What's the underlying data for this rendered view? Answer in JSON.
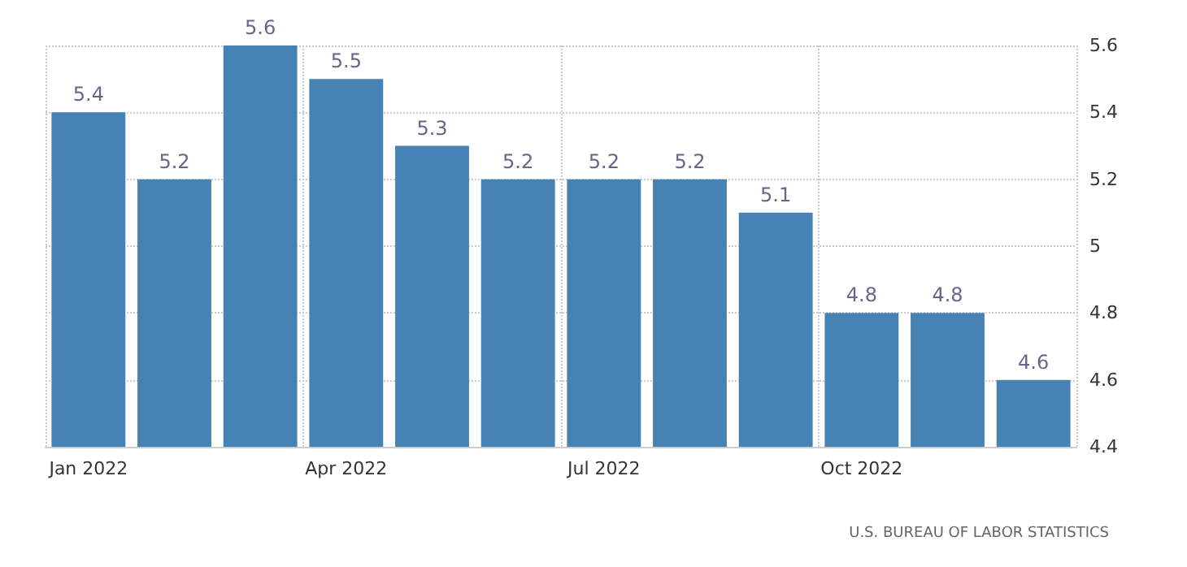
{
  "chart_data": {
    "type": "bar",
    "categories": [
      "Jan 2022",
      null,
      null,
      "Apr 2022",
      null,
      null,
      "Jul 2022",
      null,
      null,
      "Oct 2022",
      null,
      null
    ],
    "values": [
      5.4,
      5.2,
      5.6,
      5.5,
      5.3,
      5.2,
      5.2,
      5.2,
      5.1,
      4.8,
      4.8,
      4.6
    ],
    "color": "#4682b4",
    "data_labels": true,
    "ylim": [
      4.4,
      5.6
    ],
    "yticks": [
      4.4,
      4.6,
      4.8,
      5,
      5.2,
      5.4,
      5.6
    ],
    "grid": true,
    "annotations": [
      "U.S. BUREAU OF LABOR STATISTICS"
    ]
  }
}
